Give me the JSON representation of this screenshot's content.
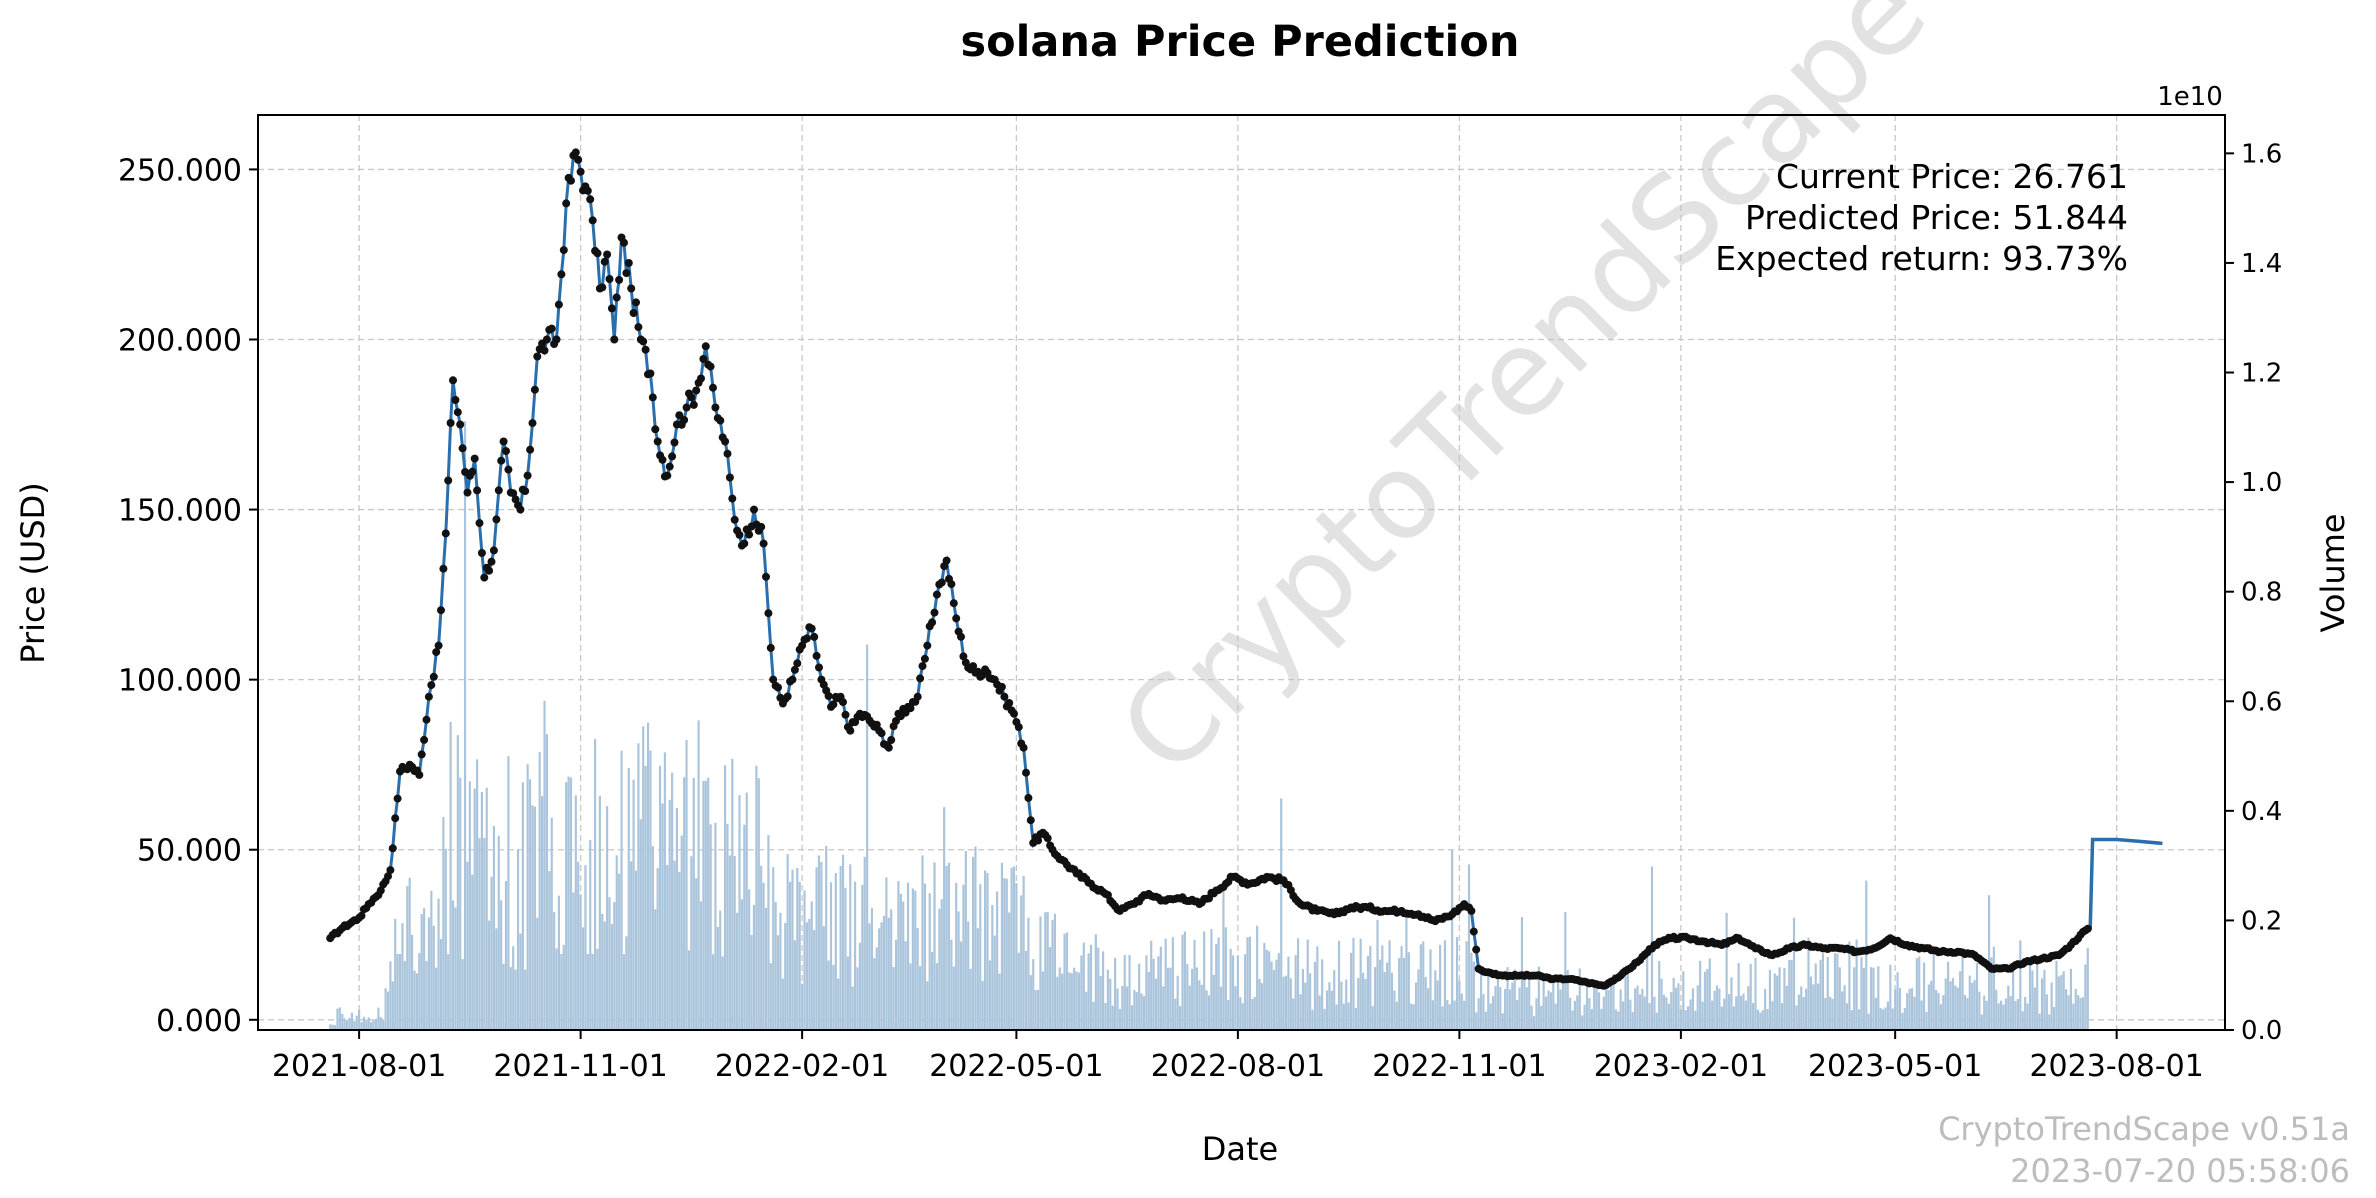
{
  "chart_data": {
    "type": "line",
    "title": "solana Price Prediction",
    "xlabel": "Date",
    "ylabel": "Price (USD)",
    "y2label": "Volume",
    "y2_offset_text": "1e10",
    "grid": true,
    "xlim": [
      "2021-06-20",
      "2023-09-15"
    ],
    "ylim": [
      -3,
      266
    ],
    "y2lim": [
      0,
      1.67
    ],
    "x_ticks": [
      "2021-08-01",
      "2021-11-01",
      "2022-02-01",
      "2022-05-01",
      "2022-08-01",
      "2022-11-01",
      "2023-02-01",
      "2023-05-01",
      "2023-08-01"
    ],
    "y_ticks": [
      0,
      50,
      100,
      150,
      200,
      250
    ],
    "y_tick_labels": [
      "0.000",
      "50.000",
      "100.000",
      "150.000",
      "200.000",
      "250.000"
    ],
    "y2_ticks": [
      0,
      0.2,
      0.4,
      0.6,
      0.8,
      1.0,
      1.2,
      1.4,
      1.6
    ],
    "y2_tick_labels": [
      "0.0",
      "0.2",
      "0.4",
      "0.6",
      "0.8",
      "1.0",
      "1.2",
      "1.4",
      "1.6"
    ],
    "series": [
      {
        "name": "Price",
        "x": [
          "2021-07-20",
          "2021-07-25",
          "2021-08-01",
          "2021-08-05",
          "2021-08-10",
          "2021-08-14",
          "2021-08-18",
          "2021-08-22",
          "2021-08-26",
          "2021-08-30",
          "2021-09-03",
          "2021-09-06",
          "2021-09-09",
          "2021-09-12",
          "2021-09-15",
          "2021-09-18",
          "2021-09-22",
          "2021-09-26",
          "2021-09-30",
          "2021-10-03",
          "2021-10-07",
          "2021-10-10",
          "2021-10-14",
          "2021-10-18",
          "2021-10-22",
          "2021-10-26",
          "2021-10-30",
          "2021-11-03",
          "2021-11-06",
          "2021-11-09",
          "2021-11-12",
          "2021-11-15",
          "2021-11-18",
          "2021-11-22",
          "2021-11-26",
          "2021-11-30",
          "2021-12-03",
          "2021-12-07",
          "2021-12-11",
          "2021-12-15",
          "2021-12-19",
          "2021-12-23",
          "2021-12-27",
          "2021-12-31",
          "2022-01-04",
          "2022-01-08",
          "2022-01-12",
          "2022-01-16",
          "2022-01-20",
          "2022-01-24",
          "2022-01-28",
          "2022-02-01",
          "2022-02-05",
          "2022-02-09",
          "2022-02-13",
          "2022-02-17",
          "2022-02-21",
          "2022-02-25",
          "2022-03-01",
          "2022-03-05",
          "2022-03-09",
          "2022-03-13",
          "2022-03-17",
          "2022-03-21",
          "2022-03-25",
          "2022-03-29",
          "2022-04-02",
          "2022-04-06",
          "2022-04-10",
          "2022-04-14",
          "2022-04-18",
          "2022-04-22",
          "2022-04-26",
          "2022-04-30",
          "2022-05-04",
          "2022-05-08",
          "2022-05-12",
          "2022-05-16",
          "2022-05-20",
          "2022-05-26",
          "2022-06-01",
          "2022-06-07",
          "2022-06-13",
          "2022-06-18",
          "2022-06-25",
          "2022-07-02",
          "2022-07-09",
          "2022-07-16",
          "2022-07-23",
          "2022-07-30",
          "2022-08-06",
          "2022-08-13",
          "2022-08-20",
          "2022-08-27",
          "2022-09-03",
          "2022-09-10",
          "2022-09-17",
          "2022-09-24",
          "2022-10-01",
          "2022-10-08",
          "2022-10-15",
          "2022-10-22",
          "2022-10-29",
          "2022-11-03",
          "2022-11-06",
          "2022-11-09",
          "2022-11-12",
          "2022-11-19",
          "2022-11-26",
          "2022-12-03",
          "2022-12-10",
          "2022-12-17",
          "2022-12-24",
          "2022-12-31",
          "2023-01-07",
          "2023-01-14",
          "2023-01-21",
          "2023-01-28",
          "2023-02-04",
          "2023-02-11",
          "2023-02-18",
          "2023-02-25",
          "2023-03-04",
          "2023-03-11",
          "2023-03-18",
          "2023-03-25",
          "2023-04-01",
          "2023-04-08",
          "2023-04-15",
          "2023-04-22",
          "2023-04-29",
          "2023-05-06",
          "2023-05-13",
          "2023-05-20",
          "2023-05-27",
          "2023-06-03",
          "2023-06-10",
          "2023-06-17",
          "2023-06-24",
          "2023-07-01",
          "2023-07-08",
          "2023-07-13",
          "2023-07-17",
          "2023-07-20"
        ],
        "values": [
          24,
          27,
          30,
          34,
          38,
          44,
          73,
          75,
          72,
          95,
          110,
          143,
          188,
          175,
          155,
          165,
          130,
          138,
          170,
          155,
          150,
          160,
          195,
          200,
          200,
          240,
          255,
          245,
          235,
          215,
          225,
          200,
          230,
          215,
          200,
          190,
          170,
          160,
          175,
          180,
          185,
          198,
          180,
          170,
          147,
          140,
          150,
          140,
          100,
          93,
          100,
          110,
          115,
          100,
          92,
          95,
          85,
          90,
          88,
          85,
          80,
          90,
          92,
          95,
          110,
          125,
          135,
          118,
          105,
          102,
          103,
          100,
          95,
          90,
          80,
          52,
          55,
          50,
          47,
          43,
          40,
          37,
          32,
          34,
          37,
          35,
          36,
          34,
          38,
          42,
          40,
          42,
          41,
          34,
          32,
          31,
          33,
          33,
          32,
          32,
          31,
          29,
          31,
          34,
          32,
          15,
          14,
          13,
          13,
          13,
          12,
          12,
          11,
          10,
          13,
          17,
          22,
          24,
          24,
          23,
          22,
          24,
          21,
          19,
          21,
          22,
          21,
          21,
          20,
          21,
          24,
          22,
          21,
          20,
          20,
          19,
          15,
          15,
          17,
          18,
          19,
          22,
          25,
          26.761
        ]
      },
      {
        "name": "Prediction",
        "x": [
          "2023-07-21",
          "2023-07-22",
          "2023-08-01",
          "2023-08-10",
          "2023-08-20"
        ],
        "values": [
          26.761,
          53,
          53,
          52.5,
          51.844
        ]
      }
    ],
    "annotations": {
      "current_price": "Current Price: 26.761",
      "predicted_price": "Predicted Price: 51.844",
      "expected_return": "Expected return: 93.73%"
    },
    "watermark": "CryptoTrendScape",
    "footer": {
      "version": "CryptoTrendScape v0.51a",
      "timestamp": "2023-07-20 05:58:06"
    }
  },
  "colors": {
    "line": "#2a6fad",
    "marker": "#111111",
    "volume": "#aac4dc",
    "grid": "#c8c8c8"
  }
}
